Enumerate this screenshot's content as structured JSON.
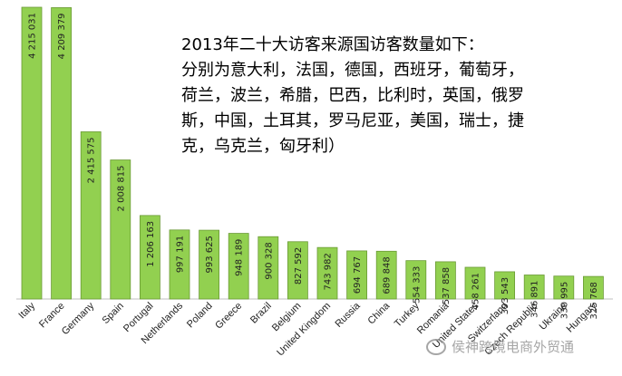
{
  "chart_data": {
    "type": "bar",
    "title": "2013年二十大访客来源国访客数量如下：分别为意大利，法国，德国，西班牙，葡萄牙，荷兰，波兰，希腊，巴西，比利时，英国，俄罗斯，中国，土耳其，罗马尼亚，美国，瑞士，捷克，乌克兰，匈牙利）",
    "categories": [
      "Italy",
      "France",
      "Germany",
      "Spain",
      "Portugal",
      "Netherlands",
      "Poland",
      "Greece",
      "Brazil",
      "Belgium",
      "United Kingdom",
      "Russia",
      "China",
      "Turkey",
      "Romania",
      "United States",
      "Switzerland",
      "Czech Republic",
      "Ukraine",
      "Hungary"
    ],
    "values": [
      4215031,
      4209379,
      2415575,
      2008815,
      1206163,
      997191,
      993625,
      948189,
      900328,
      827592,
      743982,
      694767,
      689848,
      554333,
      537858,
      458261,
      393543,
      346891,
      330995,
      325768
    ],
    "value_labels": [
      "4 215 031",
      "4 209 379",
      "2 415 575",
      "2 008 815",
      "1 206 163",
      "997 191",
      "993 625",
      "948 189",
      "900 328",
      "827 592",
      "743 982",
      "694 767",
      "689 848",
      "554 333",
      "537 858",
      "458 261",
      "393 543",
      "346 891",
      "330 995",
      "325 768"
    ],
    "ylim": [
      0,
      4215031
    ],
    "grid": false,
    "legend": "none",
    "bar_color": "#92d050"
  },
  "title_lines": [
    "2013年二十大访客来源国访客数量如下：",
    "分别为意大利，法国，德国，西班牙，葡萄牙，",
    "荷兰，波兰，希腊，巴西，比利时，英国，俄罗",
    "斯，中国，土耳其，罗马尼亚，美国，瑞士，捷",
    "克，乌克兰，匈牙利）"
  ],
  "watermark": "侯神跨境电商外贸通"
}
